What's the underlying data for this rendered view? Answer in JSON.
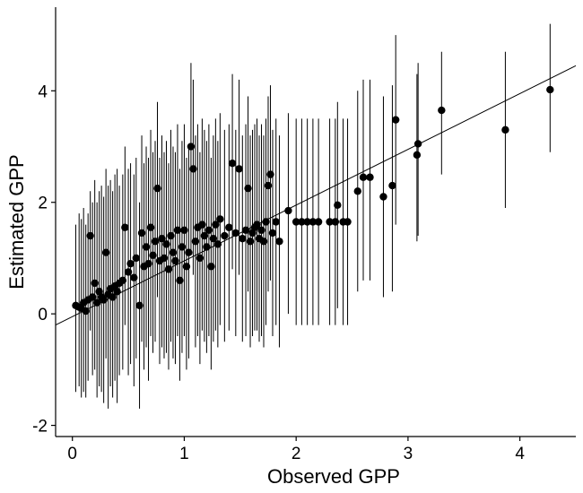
{
  "chart_data": {
    "type": "scatter",
    "title": "",
    "xlabel": "Observed GPP",
    "ylabel": "Estimated GPP",
    "xlim": [
      -0.15,
      4.5
    ],
    "ylim": [
      -2.2,
      5.5
    ],
    "x_ticks": [
      0,
      1,
      2,
      3,
      4
    ],
    "y_ticks": [
      -2,
      0,
      2,
      4
    ],
    "x_tick_labels": [
      "0",
      "1",
      "2",
      "3",
      "4"
    ],
    "y_tick_labels": [
      "-2",
      "0",
      "2",
      "4"
    ],
    "grid": false,
    "legend": "none",
    "reference_line": {
      "intercept": -0.05,
      "slope": 1.0
    },
    "series": [
      {
        "marker_color": "#000000",
        "points": [
          {
            "x": 0.03,
            "y": 0.15,
            "lo": -1.4,
            "hi": 1.6
          },
          {
            "x": 0.06,
            "y": 0.12,
            "lo": -1.3,
            "hi": 1.8
          },
          {
            "x": 0.08,
            "y": 0.1,
            "lo": -1.5,
            "hi": 1.7
          },
          {
            "x": 0.1,
            "y": 0.2,
            "lo": -1.4,
            "hi": 1.9
          },
          {
            "x": 0.12,
            "y": 0.05,
            "lo": -1.5,
            "hi": 1.6
          },
          {
            "x": 0.14,
            "y": 0.25,
            "lo": -1.2,
            "hi": 1.8
          },
          {
            "x": 0.16,
            "y": 1.4,
            "lo": -0.3,
            "hi": 2.2
          },
          {
            "x": 0.18,
            "y": 0.3,
            "lo": -1.1,
            "hi": 2.0
          },
          {
            "x": 0.2,
            "y": 0.55,
            "lo": -1.0,
            "hi": 2.4
          },
          {
            "x": 0.22,
            "y": 0.2,
            "lo": -1.5,
            "hi": 2.0
          },
          {
            "x": 0.24,
            "y": 0.4,
            "lo": -1.3,
            "hi": 2.2
          },
          {
            "x": 0.26,
            "y": 0.3,
            "lo": -1.4,
            "hi": 2.3
          },
          {
            "x": 0.28,
            "y": 0.25,
            "lo": -1.6,
            "hi": 2.1
          },
          {
            "x": 0.3,
            "y": 1.1,
            "lo": -0.8,
            "hi": 2.6
          },
          {
            "x": 0.32,
            "y": 0.35,
            "lo": -1.7,
            "hi": 2.3
          },
          {
            "x": 0.34,
            "y": 0.45,
            "lo": -1.3,
            "hi": 2.4
          },
          {
            "x": 0.36,
            "y": 0.3,
            "lo": -1.5,
            "hi": 2.2
          },
          {
            "x": 0.38,
            "y": 0.5,
            "lo": -1.2,
            "hi": 2.5
          },
          {
            "x": 0.4,
            "y": 0.4,
            "lo": -1.6,
            "hi": 2.6
          },
          {
            "x": 0.42,
            "y": 0.55,
            "lo": -1.1,
            "hi": 2.3
          },
          {
            "x": 0.45,
            "y": 0.6,
            "lo": -1.0,
            "hi": 2.5
          },
          {
            "x": 0.47,
            "y": 1.55,
            "lo": -0.2,
            "hi": 3.0
          },
          {
            "x": 0.5,
            "y": 0.75,
            "lo": -1.1,
            "hi": 2.6
          },
          {
            "x": 0.52,
            "y": 0.9,
            "lo": -0.9,
            "hi": 2.7
          },
          {
            "x": 0.55,
            "y": 0.65,
            "lo": -1.3,
            "hi": 2.5
          },
          {
            "x": 0.57,
            "y": 1.0,
            "lo": -0.8,
            "hi": 2.8
          },
          {
            "x": 0.6,
            "y": 0.15,
            "lo": -1.7,
            "hi": 2.0
          },
          {
            "x": 0.62,
            "y": 1.45,
            "lo": -0.5,
            "hi": 3.2
          },
          {
            "x": 0.64,
            "y": 0.85,
            "lo": -1.0,
            "hi": 2.7
          },
          {
            "x": 0.66,
            "y": 1.2,
            "lo": -0.6,
            "hi": 3.0
          },
          {
            "x": 0.68,
            "y": 0.9,
            "lo": -1.2,
            "hi": 2.8
          },
          {
            "x": 0.7,
            "y": 1.55,
            "lo": -0.4,
            "hi": 3.3
          },
          {
            "x": 0.72,
            "y": 1.05,
            "lo": -0.7,
            "hi": 2.9
          },
          {
            "x": 0.74,
            "y": 1.3,
            "lo": -0.5,
            "hi": 3.1
          },
          {
            "x": 0.76,
            "y": 2.25,
            "lo": 0.3,
            "hi": 3.8
          },
          {
            "x": 0.78,
            "y": 0.95,
            "lo": -0.9,
            "hi": 2.8
          },
          {
            "x": 0.8,
            "y": 1.35,
            "lo": -0.6,
            "hi": 3.2
          },
          {
            "x": 0.82,
            "y": 1.0,
            "lo": -0.8,
            "hi": 2.9
          },
          {
            "x": 0.84,
            "y": 1.25,
            "lo": -0.7,
            "hi": 3.1
          },
          {
            "x": 0.86,
            "y": 0.8,
            "lo": -1.0,
            "hi": 2.7
          },
          {
            "x": 0.88,
            "y": 1.4,
            "lo": -0.5,
            "hi": 3.3
          },
          {
            "x": 0.9,
            "y": 1.1,
            "lo": -0.8,
            "hi": 3.0
          },
          {
            "x": 0.92,
            "y": 0.95,
            "lo": -0.9,
            "hi": 2.9
          },
          {
            "x": 0.94,
            "y": 1.5,
            "lo": -0.4,
            "hi": 3.4
          },
          {
            "x": 0.96,
            "y": 0.6,
            "lo": -1.2,
            "hi": 2.6
          },
          {
            "x": 0.98,
            "y": 1.2,
            "lo": -0.7,
            "hi": 3.1
          },
          {
            "x": 1.0,
            "y": 1.5,
            "lo": -0.4,
            "hi": 3.4
          },
          {
            "x": 1.02,
            "y": 0.85,
            "lo": -1.0,
            "hi": 2.8
          },
          {
            "x": 1.04,
            "y": 1.1,
            "lo": -0.8,
            "hi": 3.0
          },
          {
            "x": 1.06,
            "y": 3.0,
            "lo": 1.1,
            "hi": 4.5
          },
          {
            "x": 1.08,
            "y": 2.6,
            "lo": 0.7,
            "hi": 4.2
          },
          {
            "x": 1.1,
            "y": 1.3,
            "lo": -0.6,
            "hi": 3.2
          },
          {
            "x": 1.12,
            "y": 1.55,
            "lo": -0.4,
            "hi": 3.4
          },
          {
            "x": 1.14,
            "y": 1.0,
            "lo": -0.9,
            "hi": 2.9
          },
          {
            "x": 1.16,
            "y": 1.6,
            "lo": -0.3,
            "hi": 3.5
          },
          {
            "x": 1.18,
            "y": 1.4,
            "lo": -0.5,
            "hi": 3.3
          },
          {
            "x": 1.2,
            "y": 1.2,
            "lo": -0.7,
            "hi": 3.1
          },
          {
            "x": 1.22,
            "y": 1.5,
            "lo": -0.4,
            "hi": 3.4
          },
          {
            "x": 1.24,
            "y": 0.85,
            "lo": -1.0,
            "hi": 2.8
          },
          {
            "x": 1.26,
            "y": 1.35,
            "lo": -0.5,
            "hi": 3.2
          },
          {
            "x": 1.28,
            "y": 1.6,
            "lo": -0.3,
            "hi": 3.5
          },
          {
            "x": 1.3,
            "y": 1.25,
            "lo": -0.6,
            "hi": 3.1
          },
          {
            "x": 1.32,
            "y": 1.7,
            "lo": -0.2,
            "hi": 3.6
          },
          {
            "x": 1.36,
            "y": 1.4,
            "lo": -0.5,
            "hi": 3.3
          },
          {
            "x": 1.4,
            "y": 1.55,
            "lo": -0.3,
            "hi": 3.4
          },
          {
            "x": 1.43,
            "y": 2.7,
            "lo": 0.8,
            "hi": 4.3
          },
          {
            "x": 1.46,
            "y": 1.45,
            "lo": -0.4,
            "hi": 3.3
          },
          {
            "x": 1.49,
            "y": 2.6,
            "lo": 0.7,
            "hi": 4.2
          },
          {
            "x": 1.52,
            "y": 1.35,
            "lo": -0.5,
            "hi": 3.2
          },
          {
            "x": 1.55,
            "y": 1.5,
            "lo": -0.4,
            "hi": 3.4
          },
          {
            "x": 1.57,
            "y": 2.25,
            "lo": 0.4,
            "hi": 3.9
          },
          {
            "x": 1.59,
            "y": 1.3,
            "lo": -0.6,
            "hi": 3.2
          },
          {
            "x": 1.61,
            "y": 1.45,
            "lo": -0.4,
            "hi": 3.3
          },
          {
            "x": 1.63,
            "y": 1.55,
            "lo": -0.3,
            "hi": 3.4
          },
          {
            "x": 1.65,
            "y": 1.6,
            "lo": -0.3,
            "hi": 3.5
          },
          {
            "x": 1.67,
            "y": 1.35,
            "lo": -0.5,
            "hi": 3.2
          },
          {
            "x": 1.69,
            "y": 1.5,
            "lo": -0.4,
            "hi": 3.4
          },
          {
            "x": 1.71,
            "y": 1.3,
            "lo": -0.6,
            "hi": 3.2
          },
          {
            "x": 1.73,
            "y": 1.65,
            "lo": -0.2,
            "hi": 3.5
          },
          {
            "x": 1.75,
            "y": 2.3,
            "lo": 0.4,
            "hi": 3.9
          },
          {
            "x": 1.77,
            "y": 2.5,
            "lo": 0.6,
            "hi": 4.1
          },
          {
            "x": 1.79,
            "y": 1.45,
            "lo": -0.4,
            "hi": 3.3
          },
          {
            "x": 1.82,
            "y": 1.65,
            "lo": -0.2,
            "hi": 3.5
          },
          {
            "x": 1.85,
            "y": 1.3,
            "lo": -0.6,
            "hi": 3.2
          },
          {
            "x": 1.93,
            "y": 1.85,
            "lo": 0.0,
            "hi": 3.6
          },
          {
            "x": 2.0,
            "y": 1.65,
            "lo": -0.2,
            "hi": 3.5
          },
          {
            "x": 2.05,
            "y": 1.65,
            "lo": -0.2,
            "hi": 3.5
          },
          {
            "x": 2.1,
            "y": 1.65,
            "lo": -0.2,
            "hi": 3.5
          },
          {
            "x": 2.15,
            "y": 1.65,
            "lo": -0.2,
            "hi": 3.5
          },
          {
            "x": 2.2,
            "y": 1.65,
            "lo": -0.2,
            "hi": 3.5
          },
          {
            "x": 2.3,
            "y": 1.65,
            "lo": -0.2,
            "hi": 3.5
          },
          {
            "x": 2.35,
            "y": 1.65,
            "lo": -0.2,
            "hi": 3.5
          },
          {
            "x": 2.37,
            "y": 1.95,
            "lo": 0.1,
            "hi": 3.8
          },
          {
            "x": 2.42,
            "y": 1.65,
            "lo": -0.2,
            "hi": 3.5
          },
          {
            "x": 2.46,
            "y": 1.65,
            "lo": -0.2,
            "hi": 3.5
          },
          {
            "x": 2.55,
            "y": 2.2,
            "lo": 0.4,
            "hi": 4.0
          },
          {
            "x": 2.6,
            "y": 2.45,
            "lo": 0.6,
            "hi": 4.2
          },
          {
            "x": 2.66,
            "y": 2.45,
            "lo": 0.6,
            "hi": 4.2
          },
          {
            "x": 2.78,
            "y": 2.1,
            "lo": 0.3,
            "hi": 3.9
          },
          {
            "x": 2.86,
            "y": 2.3,
            "lo": 0.4,
            "hi": 4.1
          },
          {
            "x": 2.89,
            "y": 3.48,
            "lo": 1.6,
            "hi": 5.0
          },
          {
            "x": 3.08,
            "y": 2.85,
            "lo": 1.3,
            "hi": 4.3
          },
          {
            "x": 3.09,
            "y": 3.05,
            "lo": 1.4,
            "hi": 4.5
          },
          {
            "x": 3.3,
            "y": 3.65,
            "lo": 2.5,
            "hi": 4.7
          },
          {
            "x": 3.87,
            "y": 3.3,
            "lo": 1.9,
            "hi": 4.7
          },
          {
            "x": 4.27,
            "y": 4.02,
            "lo": 2.9,
            "hi": 5.2
          }
        ]
      }
    ]
  }
}
